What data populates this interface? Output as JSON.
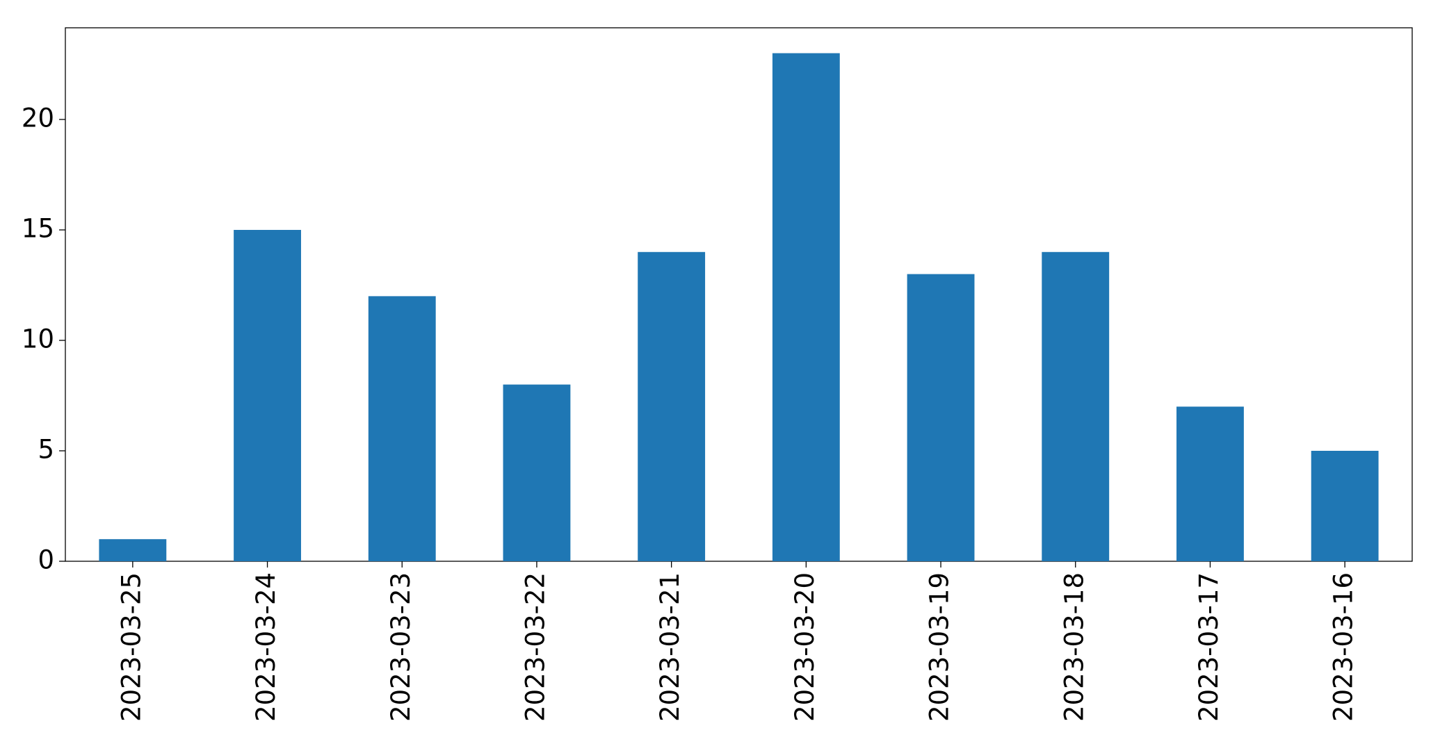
{
  "chart_data": {
    "type": "bar",
    "categories": [
      "2023-03-25",
      "2023-03-24",
      "2023-03-23",
      "2023-03-22",
      "2023-03-21",
      "2023-03-20",
      "2023-03-19",
      "2023-03-18",
      "2023-03-17",
      "2023-03-16"
    ],
    "values": [
      1,
      15,
      12,
      8,
      14,
      23,
      13,
      14,
      7,
      5
    ],
    "color": "#1f77b4",
    "ylim": [
      0,
      24.15
    ],
    "yticks": [
      0,
      5,
      10,
      15,
      20
    ],
    "grid": false
  }
}
